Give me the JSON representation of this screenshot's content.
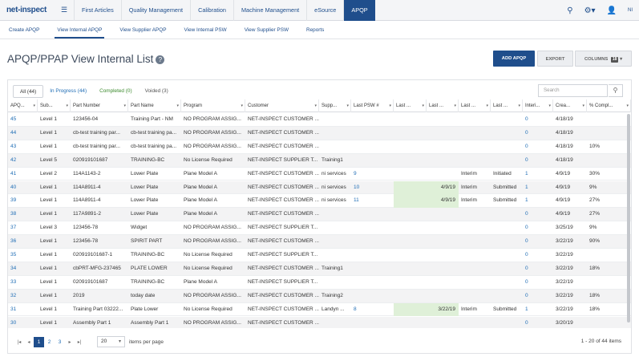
{
  "app": {
    "logo": "net-inspect",
    "menu_icon": "hamburger-icon"
  },
  "topnav": [
    "First Articles",
    "Quality Management",
    "Calibration",
    "Machine Management",
    "eSource",
    "APQP"
  ],
  "topnav_active": 5,
  "topright": {
    "search_icon": "search-icon",
    "gear_icon": "gear-icon",
    "user_icon": "user-icon",
    "user_initials": "NI"
  },
  "subnav": [
    "Create APQP",
    "View Internal APQP",
    "View Supplier APQP",
    "View Internal PSW",
    "View Supplier PSW",
    "Reports"
  ],
  "subnav_active": 1,
  "page": {
    "title": "APQP/PPAP View Internal List",
    "help_icon": "?"
  },
  "buttons": {
    "add": "ADD APQP",
    "export": "EXPORT",
    "columns": "COLUMNS",
    "columns_count": "18"
  },
  "filters": {
    "all": "All (44)",
    "in_progress": "In Progress (44)",
    "completed": "Completed (0)",
    "voided": "Voided (3)"
  },
  "search": {
    "placeholder": "Search"
  },
  "columns": [
    "APQ...",
    "Sub...",
    "Part Number",
    "Part Name",
    "Program",
    "Customer",
    "Supp...",
    "Last PSW #",
    "Last ...",
    "Last ...",
    "Last ...",
    "Last ...",
    "Interi...",
    "Crea...",
    "% Compl..."
  ],
  "rows": [
    [
      "45",
      "Level 1",
      "123456-04",
      "Training Part - NM",
      "NO PROGRAM ASSIG...",
      "NET-INSPECT CUSTOMER ...",
      "",
      "",
      "",
      "",
      "",
      "",
      "0",
      "4/18/19",
      ""
    ],
    [
      "44",
      "Level 1",
      "cb-test training par...",
      "cb-test training pa...",
      "NO PROGRAM ASSIG...",
      "NET-INSPECT CUSTOMER ...",
      "",
      "",
      "",
      "",
      "",
      "",
      "0",
      "4/18/19",
      ""
    ],
    [
      "43",
      "Level 1",
      "cb-test training par...",
      "cb-test training pa...",
      "NO PROGRAM ASSIG...",
      "NET-INSPECT CUSTOMER ...",
      "",
      "",
      "",
      "",
      "",
      "",
      "0",
      "4/18/19",
      "10%"
    ],
    [
      "42",
      "Level 5",
      "020919101687",
      "TRAINING-BC",
      "No License Required",
      "NET-INSPECT SUPPLIER T...",
      "Training1",
      "",
      "",
      "",
      "",
      "",
      "0",
      "4/18/19",
      ""
    ],
    [
      "41",
      "Level 2",
      "114A1143-2",
      "Lower Plate",
      "Plane Model A",
      "NET-INSPECT CUSTOMER ...",
      "ni services",
      "9",
      "",
      "",
      "Interim",
      "Initiated",
      "1",
      "4/9/19",
      "30%"
    ],
    [
      "40",
      "Level 1",
      "114A8911-4",
      "Lower Plate",
      "Plane Model A",
      "NET-INSPECT CUSTOMER ...",
      "ni services",
      "10",
      "",
      "4/9/19",
      "Interim",
      "Submitted",
      "1",
      "4/9/19",
      "9%"
    ],
    [
      "39",
      "Level 1",
      "114A8911-4",
      "Lower Plate",
      "Plane Model A",
      "NET-INSPECT CUSTOMER ...",
      "ni services",
      "11",
      "",
      "4/9/19",
      "Interim",
      "Submitted",
      "1",
      "4/9/19",
      "27%"
    ],
    [
      "38",
      "Level 1",
      "117A9891-2",
      "Lower Plate",
      "Plane Model A",
      "NET-INSPECT CUSTOMER ...",
      "",
      "",
      "",
      "",
      "",
      "",
      "0",
      "4/9/19",
      "27%"
    ],
    [
      "37",
      "Level 3",
      "123456-78",
      "Widget",
      "NO PROGRAM ASSIG...",
      "NET-INSPECT SUPPLIER T...",
      "",
      "",
      "",
      "",
      "",
      "",
      "0",
      "3/25/19",
      "9%"
    ],
    [
      "36",
      "Level 1",
      "123456-78",
      "SPIRIT PART",
      "NO PROGRAM ASSIG...",
      "NET-INSPECT CUSTOMER ...",
      "",
      "",
      "",
      "",
      "",
      "",
      "0",
      "3/22/19",
      "90%"
    ],
    [
      "35",
      "Level 1",
      "020919101687-1",
      "TRAINING-BC",
      "No License Required",
      "NET-INSPECT SUPPLIER T...",
      "",
      "",
      "",
      "",
      "",
      "",
      "0",
      "3/22/19",
      ""
    ],
    [
      "34",
      "Level 1",
      "cbPRT-MFG-237465",
      "PLATE LOWER",
      "No License Required",
      "NET-INSPECT CUSTOMER ...",
      "Training1",
      "",
      "",
      "",
      "",
      "",
      "0",
      "3/22/19",
      "18%"
    ],
    [
      "33",
      "Level 1",
      "020919101687",
      "TRAINING-BC",
      "Plane Model A",
      "NET-INSPECT SUPPLIER T...",
      "",
      "",
      "",
      "",
      "",
      "",
      "0",
      "3/22/19",
      ""
    ],
    [
      "32",
      "Level 1",
      "2019",
      "today date",
      "NO PROGRAM ASSIG...",
      "NET-INSPECT CUSTOMER ...",
      "Training2",
      "",
      "",
      "",
      "",
      "",
      "0",
      "3/22/19",
      "18%"
    ],
    [
      "31",
      "Level 1",
      "Training Part 03222...",
      "Plate Lower",
      "No License Required",
      "NET-INSPECT CUSTOMER ...",
      "Landyn ...",
      "8",
      "",
      "3/22/19",
      "Interim",
      "Submitted",
      "1",
      "3/22/19",
      "18%"
    ],
    [
      "30",
      "Level 1",
      "Assembly Part 1",
      "Assembly Part 1",
      "NO PROGRAM ASSIG...",
      "NET-INSPECT CUSTOMER ...",
      "",
      "",
      "",
      "",
      "",
      "",
      "0",
      "3/20/19",
      ""
    ]
  ],
  "pager": {
    "first": "first-page-icon",
    "prev": "prev-page-icon",
    "pages": [
      "1",
      "2",
      "3"
    ],
    "active_page": 0,
    "next": "next-page-icon",
    "last": "last-page-icon",
    "page_size": "20",
    "items_label": "items per page",
    "info": "1 - 20 of 44 items"
  },
  "colors": {
    "brand": "#1f4e8c",
    "link": "#1f6db5",
    "highlight": "#dff0d8"
  }
}
